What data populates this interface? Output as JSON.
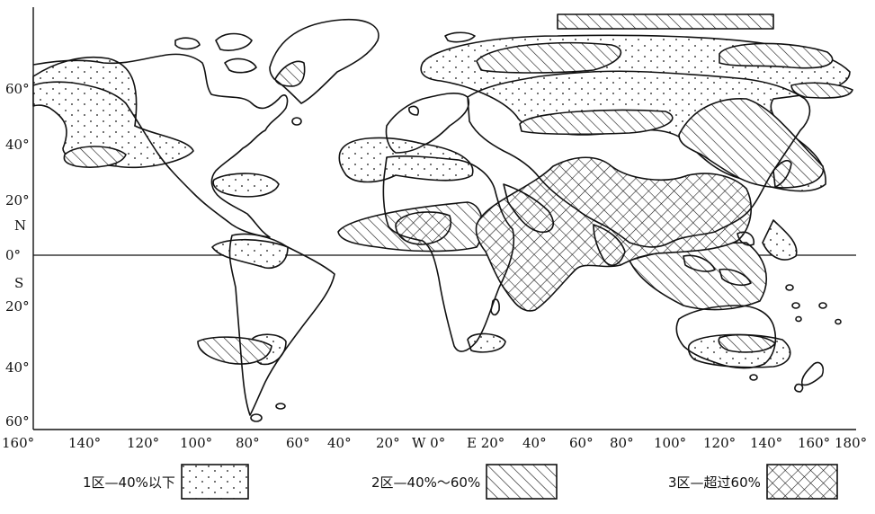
{
  "map": {
    "lat_labels": [
      {
        "text": "60°"
      },
      {
        "text": "40°"
      },
      {
        "text": "20°"
      },
      {
        "text": "N"
      },
      {
        "text": "0°"
      },
      {
        "text": "S"
      },
      {
        "text": "20°"
      },
      {
        "text": "40°"
      },
      {
        "text": "60°"
      }
    ],
    "lon_labels": [
      {
        "text": "160°"
      },
      {
        "text": "140°"
      },
      {
        "text": "120°"
      },
      {
        "text": "100°"
      },
      {
        "text": "80°"
      },
      {
        "text": "60°"
      },
      {
        "text": "40°"
      },
      {
        "text": "20°"
      },
      {
        "text": "W 0°"
      },
      {
        "text": "E 20°"
      },
      {
        "text": "40°"
      },
      {
        "text": "60°"
      },
      {
        "text": "80°"
      },
      {
        "text": "100°"
      },
      {
        "text": "120°"
      },
      {
        "text": "140°"
      },
      {
        "text": "160°"
      },
      {
        "text": "180°"
      }
    ]
  },
  "legend": {
    "items": [
      {
        "label": "1区—40%以下",
        "pattern": "dots"
      },
      {
        "label": "2区—40%～60%",
        "pattern": "hatch"
      },
      {
        "label": "3区—超过60%",
        "pattern": "crosshatch"
      }
    ]
  }
}
